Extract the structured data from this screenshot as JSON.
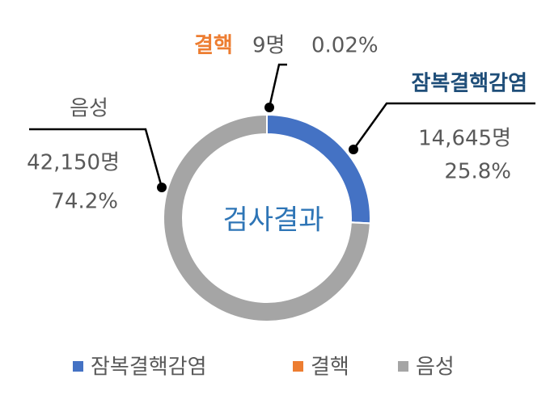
{
  "chart_data": {
    "type": "donut",
    "center_label": "검사결과",
    "categories": [
      "잠복결핵감염",
      "결핵",
      "음성"
    ],
    "values": [
      25.8,
      0.02,
      74.2
    ],
    "value_labels": [
      "25.8%",
      "0.02%",
      "74.2%"
    ],
    "counts": [
      14645,
      9,
      42150
    ],
    "count_labels": [
      "14,645명",
      "9명",
      "42,150명"
    ],
    "colors": [
      "#4472c4",
      "#ed7d31",
      "#a5a5a5"
    ],
    "legend": "bottom"
  }
}
